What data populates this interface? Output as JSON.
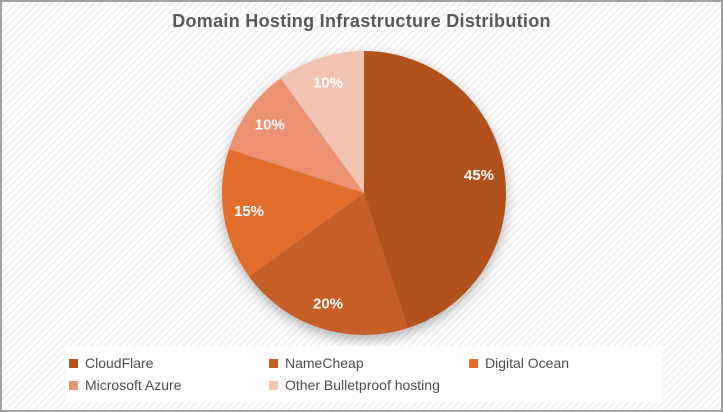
{
  "chart_data": {
    "type": "pie",
    "title": "Domain Hosting Infrastructure Distribution",
    "categories": [
      "CloudFlare",
      "NameCheap",
      "Digital Ocean",
      "Microsoft Azure",
      "Other Bulletproof hosting"
    ],
    "values": [
      45,
      20,
      15,
      10,
      10
    ],
    "labels": [
      "45%",
      "20%",
      "15%",
      "10%",
      "10%"
    ],
    "colors": [
      "#B1521D",
      "#C55E27",
      "#E26E2B",
      "#EB9273",
      "#F2C3B2"
    ],
    "slice_ids": [
      "cloudflare",
      "namecheap",
      "digital-ocean",
      "microsoft-azure",
      "other-bulletproof-hosting"
    ],
    "start_angle_deg": 0,
    "direction": "clockwise",
    "data_labels": "percent-inside",
    "legend_position": "bottom",
    "title_color": "#595959",
    "legend_text_color": "#4d4d4d"
  }
}
